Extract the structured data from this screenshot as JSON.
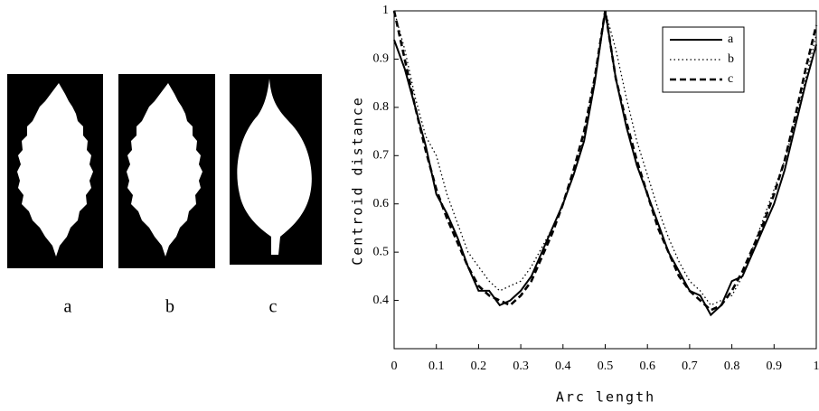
{
  "panels": [
    "a",
    "b",
    "c"
  ],
  "chart_data": {
    "type": "line",
    "xlabel": "Arc length",
    "ylabel": "Centroid distance",
    "x": [
      0,
      0.025,
      0.05,
      0.075,
      0.1,
      0.125,
      0.15,
      0.175,
      0.2,
      0.225,
      0.25,
      0.275,
      0.3,
      0.325,
      0.35,
      0.375,
      0.4,
      0.425,
      0.45,
      0.475,
      0.5,
      0.525,
      0.55,
      0.575,
      0.6,
      0.625,
      0.65,
      0.675,
      0.7,
      0.725,
      0.75,
      0.775,
      0.8,
      0.825,
      0.85,
      0.875,
      0.9,
      0.925,
      0.95,
      0.975,
      1
    ],
    "series": [
      {
        "name": "a",
        "color": "#000000",
        "style": "solid",
        "values": [
          0.94,
          0.88,
          0.8,
          0.72,
          0.62,
          0.58,
          0.53,
          0.47,
          0.42,
          0.42,
          0.39,
          0.4,
          0.42,
          0.45,
          0.5,
          0.55,
          0.6,
          0.66,
          0.73,
          0.85,
          1.0,
          0.86,
          0.76,
          0.68,
          0.62,
          0.56,
          0.5,
          0.46,
          0.42,
          0.41,
          0.37,
          0.39,
          0.44,
          0.45,
          0.5,
          0.55,
          0.6,
          0.67,
          0.76,
          0.85,
          0.93
        ]
      },
      {
        "name": "b",
        "color": "#000000",
        "style": "dotted",
        "values": [
          1.0,
          0.92,
          0.82,
          0.74,
          0.7,
          0.62,
          0.56,
          0.5,
          0.47,
          0.44,
          0.42,
          0.43,
          0.44,
          0.47,
          0.51,
          0.55,
          0.6,
          0.66,
          0.74,
          0.86,
          1.0,
          0.92,
          0.82,
          0.73,
          0.66,
          0.59,
          0.53,
          0.48,
          0.44,
          0.42,
          0.39,
          0.4,
          0.41,
          0.45,
          0.51,
          0.57,
          0.63,
          0.69,
          0.77,
          0.86,
          0.95
        ]
      },
      {
        "name": "c",
        "color": "#000000",
        "style": "dashed",
        "values": [
          1.0,
          0.9,
          0.8,
          0.71,
          0.63,
          0.57,
          0.52,
          0.47,
          0.43,
          0.41,
          0.4,
          0.39,
          0.41,
          0.44,
          0.49,
          0.54,
          0.6,
          0.67,
          0.75,
          0.86,
          1.0,
          0.86,
          0.77,
          0.69,
          0.62,
          0.55,
          0.5,
          0.45,
          0.42,
          0.4,
          0.38,
          0.39,
          0.42,
          0.46,
          0.51,
          0.56,
          0.62,
          0.69,
          0.78,
          0.88,
          0.97
        ]
      }
    ],
    "xlim": [
      0,
      1
    ],
    "xticks": [
      0,
      0.1,
      0.2,
      0.3,
      0.4,
      0.5,
      0.6,
      0.7,
      0.8,
      0.9,
      1
    ],
    "ylim": [
      0.3,
      1
    ],
    "yticks": [
      0.4,
      0.5,
      0.6,
      0.7,
      0.8,
      0.9,
      1
    ],
    "legend": "top-right",
    "grid": false
  }
}
